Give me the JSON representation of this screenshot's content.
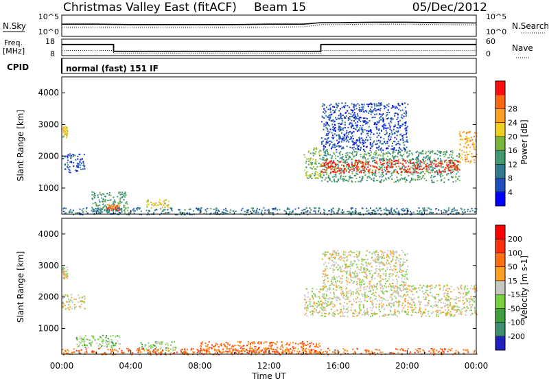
{
  "header": {
    "title": "Christmas Valley East (fitACF)",
    "beam": "Beam 15",
    "date": "05/Dec/2012"
  },
  "chart_data": [
    {
      "id": "noise_panel",
      "type": "line",
      "left_labels": [
        "N.Sky"
      ],
      "right_labels": [
        "N.Search"
      ],
      "left_ticks": [
        "10^5",
        "10^0"
      ],
      "right_ticks": [
        "10^5",
        "10^0"
      ],
      "x": [
        0,
        2,
        4,
        6,
        8,
        10,
        12,
        14,
        15,
        16,
        18,
        20,
        22,
        24
      ],
      "series": [
        {
          "values": [
            3.0,
            3.0,
            2.9,
            2.9,
            2.9,
            2.9,
            3.0,
            3.0,
            3.4,
            3.4,
            3.5,
            3.5,
            3.4,
            3.3
          ]
        },
        {
          "values": [
            2.2,
            2.2,
            2.2,
            2.2,
            2.2,
            2.2,
            2.2,
            2.3,
            2.9,
            2.9,
            3.0,
            3.0,
            2.9,
            2.8
          ]
        }
      ]
    },
    {
      "id": "freq_panel",
      "type": "line",
      "left_labels": [
        "Freq.",
        "[MHz]"
      ],
      "right_labels": [
        "Nave"
      ],
      "left_ticks": [
        "18",
        "8"
      ],
      "right_ticks": [
        "60",
        "0"
      ],
      "freq_steps": [
        [
          0,
          14.9
        ],
        [
          3.0,
          10.4
        ],
        [
          15.0,
          14.9
        ],
        [
          24,
          14.9
        ]
      ],
      "nave": [
        [
          0,
          10.9
        ],
        [
          3.0,
          9.2
        ],
        [
          15.0,
          10.9
        ],
        [
          24,
          10.9
        ]
      ],
      "ylim": [
        8,
        18
      ]
    },
    {
      "id": "cpid_panel",
      "type": "table",
      "label": "CPID",
      "mode_text": "normal (fast) 151 IF"
    },
    {
      "id": "power_panel",
      "type": "heatmap",
      "ylabel": "Slant Range [km]",
      "yticks": [
        1000,
        2000,
        3000,
        4000
      ],
      "ylim": [
        180,
        4500
      ],
      "xlim": [
        0,
        24
      ],
      "colorbar": {
        "label": "Power [dB]",
        "ticks": [
          "28",
          "24",
          "20",
          "16",
          "12",
          "8",
          "4"
        ],
        "colors": [
          "#0000ff",
          "#1f4fbf",
          "#2f7a8f",
          "#3f9a6f",
          "#7ab540",
          "#f0d020",
          "#ffa020",
          "#ff6a10",
          "#ff1010"
        ]
      },
      "bands": [
        {
          "t0": 0.0,
          "t1": 0.3,
          "r0": 2600,
          "r1": 3000,
          "level": 5
        },
        {
          "t0": 0.0,
          "t1": 1.3,
          "r0": 1500,
          "r1": 2100,
          "level": 1
        },
        {
          "t0": 1.7,
          "t1": 3.8,
          "r0": 250,
          "r1": 900,
          "level": 3
        },
        {
          "t0": 2.6,
          "t1": 3.4,
          "r0": 300,
          "r1": 500,
          "level": 7
        },
        {
          "t0": 4.8,
          "t1": 6.2,
          "r0": 400,
          "r1": 650,
          "level": 5
        },
        {
          "t0": 0.0,
          "t1": 24.0,
          "r0": 180,
          "r1": 400,
          "level": 2
        },
        {
          "t0": 14.0,
          "t1": 15.0,
          "r0": 1300,
          "r1": 2300,
          "level": 4
        },
        {
          "t0": 15.0,
          "t1": 23.0,
          "r0": 1200,
          "r1": 2200,
          "level": 3
        },
        {
          "t0": 15.0,
          "t1": 23.0,
          "r0": 1500,
          "r1": 1900,
          "level": 8
        },
        {
          "t0": 15.0,
          "t1": 20.0,
          "r0": 2200,
          "r1": 3700,
          "level": 1
        },
        {
          "t0": 23.0,
          "t1": 24.0,
          "r0": 1800,
          "r1": 2800,
          "level": 6
        }
      ]
    },
    {
      "id": "velocity_panel",
      "type": "heatmap",
      "ylabel": "Slant Range [km]",
      "yticks": [
        1000,
        2000,
        3000,
        4000
      ],
      "ylim": [
        180,
        4500
      ],
      "xlim": [
        0,
        24
      ],
      "xticks": [
        "00:00",
        "04:00",
        "08:00",
        "12:00",
        "16:00",
        "20:00",
        "00:00"
      ],
      "xlabel": "Time UT",
      "colorbar": {
        "label": "Velocity [m s-1]",
        "ticks": [
          "200",
          "100",
          "50",
          "15",
          "-15",
          "-50",
          "-100",
          "-200"
        ],
        "colors": [
          "#2020c0",
          "#3f8f6f",
          "#3fa03f",
          "#7ad040",
          "#c8c8c0",
          "#ffa020",
          "#ff7010",
          "#ff3010",
          "#ff0000"
        ]
      },
      "bands": [
        {
          "t0": 0.0,
          "t1": 0.3,
          "r0": 2600,
          "r1": 3000,
          "level": 4
        },
        {
          "t0": 0.0,
          "t1": 1.3,
          "r0": 1600,
          "r1": 2100,
          "level": 4
        },
        {
          "t0": 0.8,
          "t1": 3.4,
          "r0": 400,
          "r1": 800,
          "level": 3
        },
        {
          "t0": 4.4,
          "t1": 6.6,
          "r0": 300,
          "r1": 600,
          "level": 3
        },
        {
          "t0": 0.0,
          "t1": 24.0,
          "r0": 180,
          "r1": 380,
          "level": 6
        },
        {
          "t0": 8.0,
          "t1": 15.0,
          "r0": 200,
          "r1": 600,
          "level": 6
        },
        {
          "t0": 14.0,
          "t1": 15.0,
          "r0": 1400,
          "r1": 2300,
          "level": 4
        },
        {
          "t0": 15.0,
          "t1": 24.0,
          "r0": 1400,
          "r1": 2400,
          "level": 4
        },
        {
          "t0": 15.0,
          "t1": 20.0,
          "r0": 2400,
          "r1": 3500,
          "level": 4
        }
      ]
    }
  ]
}
